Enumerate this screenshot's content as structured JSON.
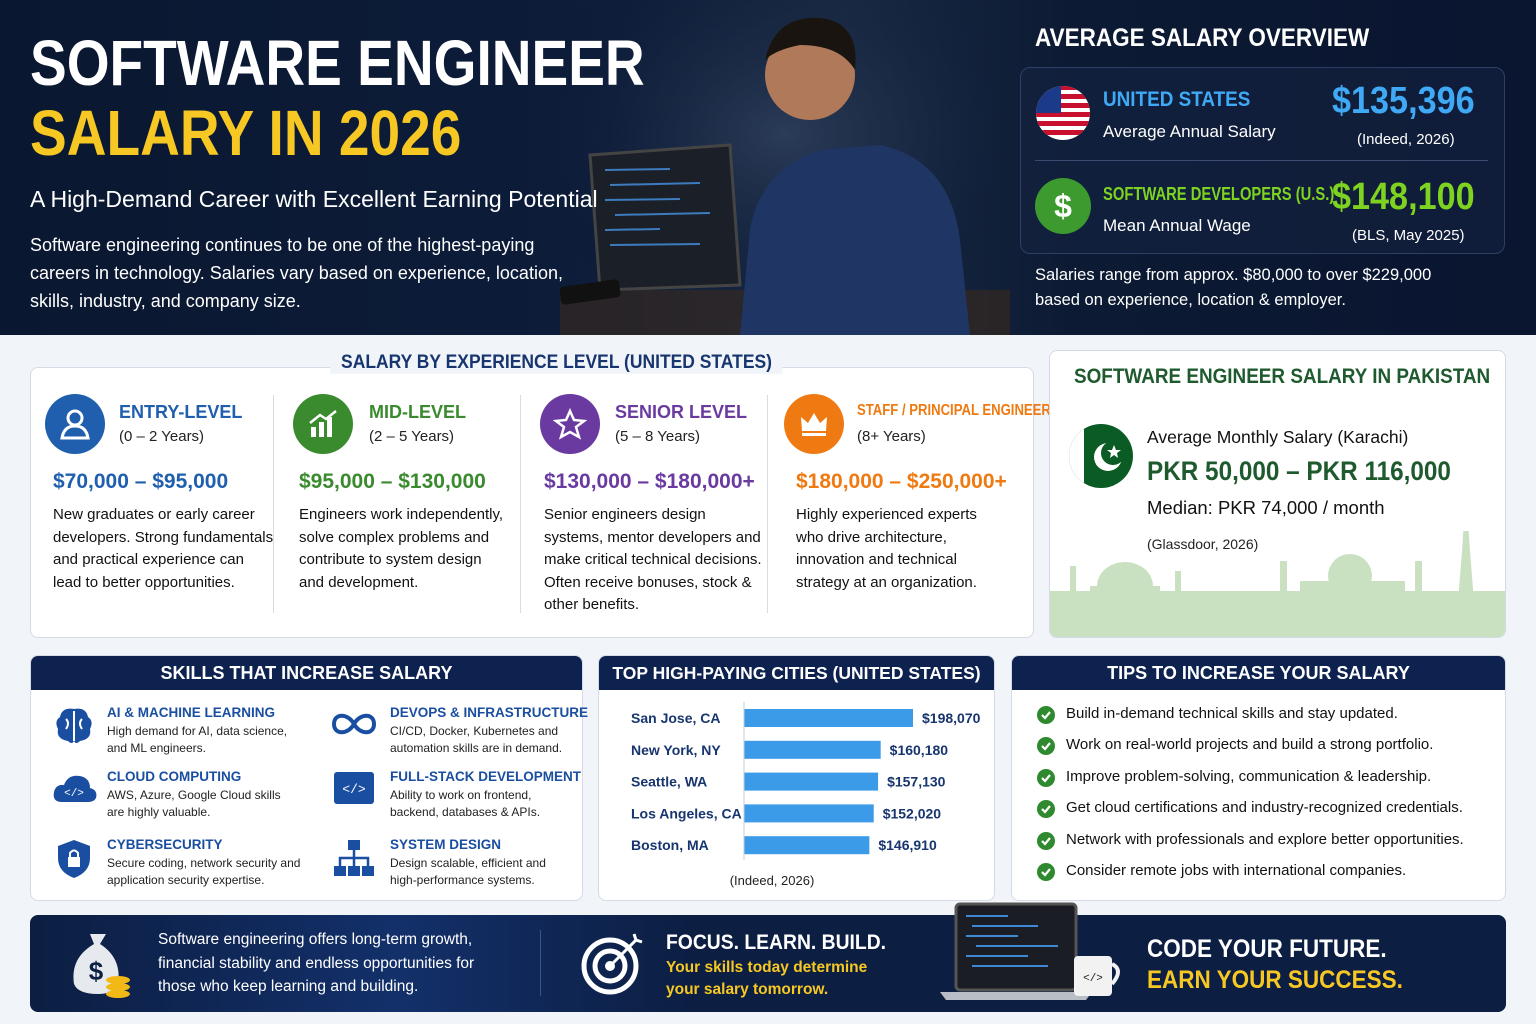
{
  "header": {
    "title_line1": "SOFTWARE ENGINEER",
    "title_line2": "SALARY IN 2026",
    "subtitle": "A High-Demand Career with Excellent Earning Potential",
    "description": "Software engineering continues to be one of the highest-paying careers in technology. Salaries vary based on experience, location, skills, industry, and company size."
  },
  "overview": {
    "title": "AVERAGE SALARY OVERVIEW",
    "items": [
      {
        "label": "UNITED STATES",
        "sublabel": "Average Annual Salary",
        "amount": "$135,396",
        "source": "(Indeed, 2026)"
      },
      {
        "label": "SOFTWARE DEVELOPERS (U.S.)",
        "sublabel": "Mean Annual Wage",
        "amount": "$148,100",
        "source": "(BLS, May 2025)"
      }
    ],
    "note": "Salaries range from approx. $80,000 to over $229,000 based on experience, location & employer."
  },
  "experience": {
    "title": "SALARY BY EXPERIENCE LEVEL (UNITED STATES)",
    "levels": [
      {
        "name": "ENTRY-LEVEL",
        "years": "(0 – 2 Years)",
        "range": "$70,000 – $95,000",
        "description": "New graduates or early career developers. Strong fundamentals and practical experience can lead to better opportunities."
      },
      {
        "name": "MID-LEVEL",
        "years": "(2 – 5 Years)",
        "range": "$95,000 – $130,000",
        "description": "Engineers work independently, solve complex problems and contribute to system design and development."
      },
      {
        "name": "SENIOR LEVEL",
        "years": "(5 – 8 Years)",
        "range": "$130,000 – $180,000+",
        "description": "Senior engineers design systems, mentor developers and make critical technical decisions. Often receive bonuses, stock & other benefits."
      },
      {
        "name": "STAFF / PRINCIPAL ENGINEER",
        "years": "(8+ Years)",
        "range": "$180,000 – $250,000+",
        "description": "Highly experienced experts who drive architecture, innovation and technical strategy at an organization."
      }
    ]
  },
  "pakistan": {
    "title": "SOFTWARE ENGINEER SALARY IN PAKISTAN",
    "label": "Average Monthly Salary (Karachi)",
    "range": "PKR 50,000 – PKR 116,000",
    "median": "Median: PKR 74,000 / month",
    "source": "(Glassdoor, 2026)"
  },
  "skills": {
    "title": "SKILLS THAT INCREASE SALARY",
    "items": [
      {
        "name": "AI & MACHINE LEARNING",
        "description": "High demand for AI, data science, and ML engineers."
      },
      {
        "name": "DEVOPS & INFRASTRUCTURE",
        "description": "CI/CD, Docker, Kubernetes and automation skills are in demand."
      },
      {
        "name": "CLOUD COMPUTING",
        "description": "AWS, Azure, Google Cloud skills are highly valuable."
      },
      {
        "name": "FULL-STACK DEVELOPMENT",
        "description": "Ability to work on frontend, backend, databases & APIs."
      },
      {
        "name": "CYBERSECURITY",
        "description": "Secure coding, network security and application security expertise."
      },
      {
        "name": "SYSTEM DESIGN",
        "description": "Design scalable, efficient and high-performance systems."
      }
    ]
  },
  "chart_data": {
    "type": "bar",
    "title": "TOP HIGH-PAYING CITIES (UNITED STATES)",
    "categories": [
      "San Jose, CA",
      "New York, NY",
      "Seattle, WA",
      "Los Angeles, CA",
      "Boston, MA"
    ],
    "values": [
      198070,
      160180,
      157130,
      152020,
      146910
    ],
    "value_labels": [
      "$198,070",
      "$160,180",
      "$157,130",
      "$152,020",
      "$146,910"
    ],
    "color": "#3b9be8",
    "source": "(Indeed, 2026)"
  },
  "tips": {
    "title": "TIPS TO INCREASE YOUR SALARY",
    "items": [
      "Build in-demand technical skills and stay updated.",
      "Work on real-world projects and build a strong portfolio.",
      "Improve problem-solving, communication & leadership.",
      "Get cloud certifications and industry-recognized credentials.",
      "Network with professionals and explore better opportunities.",
      "Consider remote jobs with international companies."
    ]
  },
  "footer": {
    "message": "Software engineering offers long-term growth, financial stability and endless opportunities for those who keep learning and building.",
    "motto": "FOCUS. LEARN. BUILD.",
    "motto_sub": "Your skills today determine your salary tomorrow.",
    "cta_line1": "CODE YOUR FUTURE.",
    "cta_line2": "EARN YOUR SUCCESS."
  }
}
